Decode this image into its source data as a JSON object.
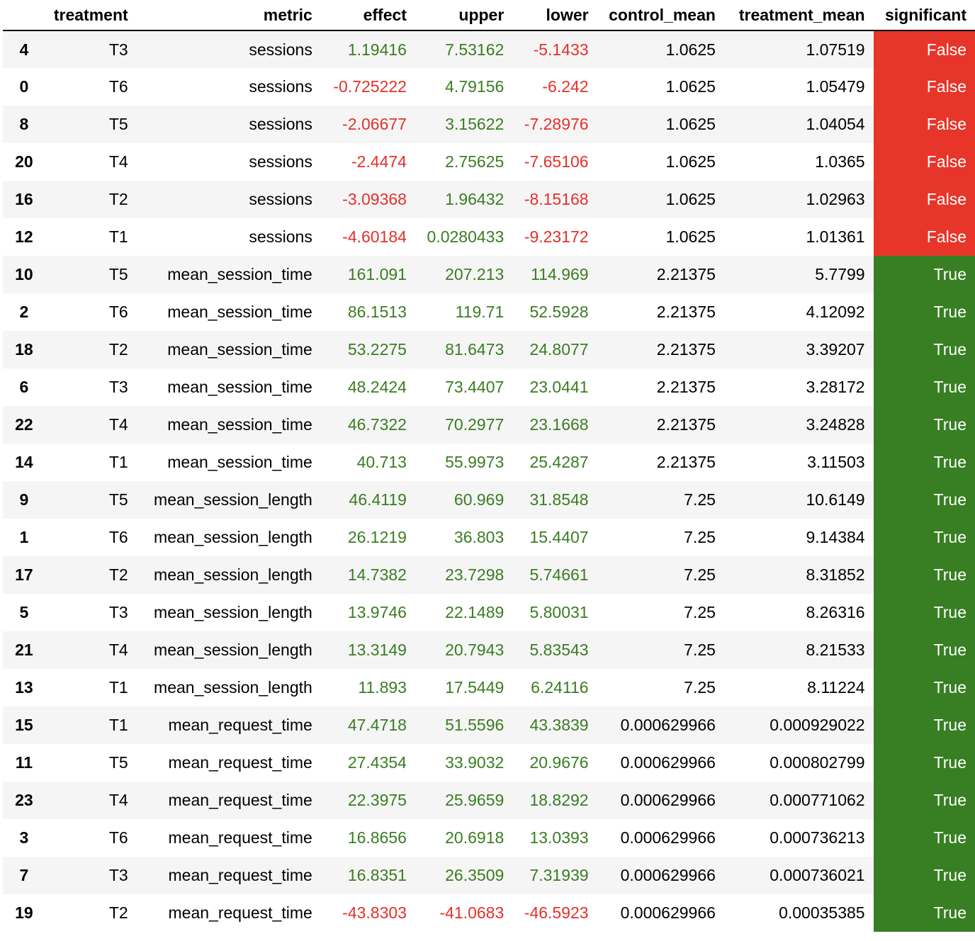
{
  "table": {
    "columns": [
      "",
      "treatment",
      "metric",
      "effect",
      "upper",
      "lower",
      "control_mean",
      "treatment_mean",
      "significant"
    ],
    "rows": [
      {
        "index": "4",
        "treatment": "T3",
        "metric": "sessions",
        "effect": "1.19416",
        "upper": "7.53162",
        "lower": "-5.1433",
        "control_mean": "1.0625",
        "treatment_mean": "1.07519",
        "significant": "False"
      },
      {
        "index": "0",
        "treatment": "T6",
        "metric": "sessions",
        "effect": "-0.725222",
        "upper": "4.79156",
        "lower": "-6.242",
        "control_mean": "1.0625",
        "treatment_mean": "1.05479",
        "significant": "False"
      },
      {
        "index": "8",
        "treatment": "T5",
        "metric": "sessions",
        "effect": "-2.06677",
        "upper": "3.15622",
        "lower": "-7.28976",
        "control_mean": "1.0625",
        "treatment_mean": "1.04054",
        "significant": "False"
      },
      {
        "index": "20",
        "treatment": "T4",
        "metric": "sessions",
        "effect": "-2.4474",
        "upper": "2.75625",
        "lower": "-7.65106",
        "control_mean": "1.0625",
        "treatment_mean": "1.0365",
        "significant": "False"
      },
      {
        "index": "16",
        "treatment": "T2",
        "metric": "sessions",
        "effect": "-3.09368",
        "upper": "1.96432",
        "lower": "-8.15168",
        "control_mean": "1.0625",
        "treatment_mean": "1.02963",
        "significant": "False"
      },
      {
        "index": "12",
        "treatment": "T1",
        "metric": "sessions",
        "effect": "-4.60184",
        "upper": "0.0280433",
        "lower": "-9.23172",
        "control_mean": "1.0625",
        "treatment_mean": "1.01361",
        "significant": "False"
      },
      {
        "index": "10",
        "treatment": "T5",
        "metric": "mean_session_time",
        "effect": "161.091",
        "upper": "207.213",
        "lower": "114.969",
        "control_mean": "2.21375",
        "treatment_mean": "5.7799",
        "significant": "True"
      },
      {
        "index": "2",
        "treatment": "T6",
        "metric": "mean_session_time",
        "effect": "86.1513",
        "upper": "119.71",
        "lower": "52.5928",
        "control_mean": "2.21375",
        "treatment_mean": "4.12092",
        "significant": "True"
      },
      {
        "index": "18",
        "treatment": "T2",
        "metric": "mean_session_time",
        "effect": "53.2275",
        "upper": "81.6473",
        "lower": "24.8077",
        "control_mean": "2.21375",
        "treatment_mean": "3.39207",
        "significant": "True"
      },
      {
        "index": "6",
        "treatment": "T3",
        "metric": "mean_session_time",
        "effect": "48.2424",
        "upper": "73.4407",
        "lower": "23.0441",
        "control_mean": "2.21375",
        "treatment_mean": "3.28172",
        "significant": "True"
      },
      {
        "index": "22",
        "treatment": "T4",
        "metric": "mean_session_time",
        "effect": "46.7322",
        "upper": "70.2977",
        "lower": "23.1668",
        "control_mean": "2.21375",
        "treatment_mean": "3.24828",
        "significant": "True"
      },
      {
        "index": "14",
        "treatment": "T1",
        "metric": "mean_session_time",
        "effect": "40.713",
        "upper": "55.9973",
        "lower": "25.4287",
        "control_mean": "2.21375",
        "treatment_mean": "3.11503",
        "significant": "True"
      },
      {
        "index": "9",
        "treatment": "T5",
        "metric": "mean_session_length",
        "effect": "46.4119",
        "upper": "60.969",
        "lower": "31.8548",
        "control_mean": "7.25",
        "treatment_mean": "10.6149",
        "significant": "True"
      },
      {
        "index": "1",
        "treatment": "T6",
        "metric": "mean_session_length",
        "effect": "26.1219",
        "upper": "36.803",
        "lower": "15.4407",
        "control_mean": "7.25",
        "treatment_mean": "9.14384",
        "significant": "True"
      },
      {
        "index": "17",
        "treatment": "T2",
        "metric": "mean_session_length",
        "effect": "14.7382",
        "upper": "23.7298",
        "lower": "5.74661",
        "control_mean": "7.25",
        "treatment_mean": "8.31852",
        "significant": "True"
      },
      {
        "index": "5",
        "treatment": "T3",
        "metric": "mean_session_length",
        "effect": "13.9746",
        "upper": "22.1489",
        "lower": "5.80031",
        "control_mean": "7.25",
        "treatment_mean": "8.26316",
        "significant": "True"
      },
      {
        "index": "21",
        "treatment": "T4",
        "metric": "mean_session_length",
        "effect": "13.3149",
        "upper": "20.7943",
        "lower": "5.83543",
        "control_mean": "7.25",
        "treatment_mean": "8.21533",
        "significant": "True"
      },
      {
        "index": "13",
        "treatment": "T1",
        "metric": "mean_session_length",
        "effect": "11.893",
        "upper": "17.5449",
        "lower": "6.24116",
        "control_mean": "7.25",
        "treatment_mean": "8.11224",
        "significant": "True"
      },
      {
        "index": "15",
        "treatment": "T1",
        "metric": "mean_request_time",
        "effect": "47.4718",
        "upper": "51.5596",
        "lower": "43.3839",
        "control_mean": "0.000629966",
        "treatment_mean": "0.000929022",
        "significant": "True"
      },
      {
        "index": "11",
        "treatment": "T5",
        "metric": "mean_request_time",
        "effect": "27.4354",
        "upper": "33.9032",
        "lower": "20.9676",
        "control_mean": "0.000629966",
        "treatment_mean": "0.000802799",
        "significant": "True"
      },
      {
        "index": "23",
        "treatment": "T4",
        "metric": "mean_request_time",
        "effect": "22.3975",
        "upper": "25.9659",
        "lower": "18.8292",
        "control_mean": "0.000629966",
        "treatment_mean": "0.000771062",
        "significant": "True"
      },
      {
        "index": "3",
        "treatment": "T6",
        "metric": "mean_request_time",
        "effect": "16.8656",
        "upper": "20.6918",
        "lower": "13.0393",
        "control_mean": "0.000629966",
        "treatment_mean": "0.000736213",
        "significant": "True"
      },
      {
        "index": "7",
        "treatment": "T3",
        "metric": "mean_request_time",
        "effect": "16.8351",
        "upper": "26.3509",
        "lower": "7.31939",
        "control_mean": "0.000629966",
        "treatment_mean": "0.000736021",
        "significant": "True"
      },
      {
        "index": "19",
        "treatment": "T2",
        "metric": "mean_request_time",
        "effect": "-43.8303",
        "upper": "-41.0683",
        "lower": "-46.5923",
        "control_mean": "0.000629966",
        "treatment_mean": "0.00035385",
        "significant": "True"
      }
    ]
  },
  "colors": {
    "positive_text": "#3a7d22",
    "negative_text": "#e5302a",
    "significant_true_bg": "#377f22",
    "significant_false_bg": "#e7352a",
    "stripe_row_bg": "#f5f5f5"
  }
}
